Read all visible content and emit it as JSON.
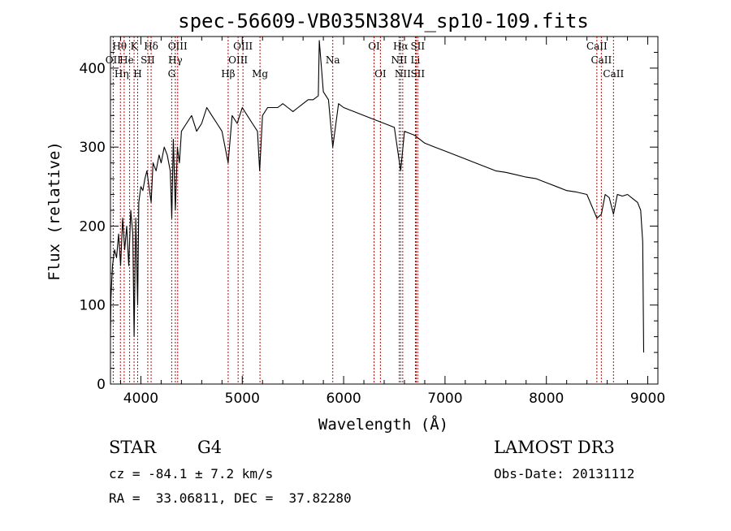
{
  "chart_data": {
    "type": "line",
    "title": "spec-56609-VB035N38V4_sp10-109.fits",
    "xlabel": "Wavelength (Å)",
    "ylabel": "Flux (relative)",
    "xlim": [
      3700,
      9100
    ],
    "ylim": [
      0,
      440
    ],
    "xticks": [
      4000,
      5000,
      6000,
      7000,
      8000,
      9000
    ],
    "yticks": [
      0,
      100,
      200,
      300,
      400
    ],
    "x_tick_labels": [
      "4000",
      "5000",
      "6000",
      "7000",
      "8000",
      "9000"
    ],
    "y_tick_labels": [
      "0",
      "100",
      "200",
      "300",
      "400"
    ],
    "grid": false,
    "series": [
      {
        "name": "flux",
        "x": [
          3700,
          3705,
          3720,
          3740,
          3760,
          3780,
          3800,
          3820,
          3840,
          3860,
          3880,
          3900,
          3920,
          3933,
          3950,
          3968,
          3980,
          4000,
          4020,
          4040,
          4060,
          4080,
          4101,
          4120,
          4150,
          4180,
          4200,
          4230,
          4260,
          4290,
          4305,
          4320,
          4340,
          4360,
          4380,
          4400,
          4450,
          4500,
          4550,
          4600,
          4650,
          4700,
          4750,
          4800,
          4861,
          4900,
          4950,
          5000,
          5050,
          5100,
          5150,
          5172,
          5200,
          5250,
          5300,
          5350,
          5400,
          5450,
          5500,
          5550,
          5600,
          5650,
          5700,
          5750,
          5760,
          5800,
          5850,
          5893,
          5950,
          6000,
          6100,
          6200,
          6300,
          6400,
          6500,
          6563,
          6600,
          6700,
          6800,
          6900,
          7000,
          7100,
          7200,
          7300,
          7400,
          7500,
          7600,
          7700,
          7800,
          7900,
          8000,
          8100,
          8200,
          8300,
          8400,
          8498,
          8542,
          8580,
          8620,
          8662,
          8700,
          8750,
          8800,
          8850,
          8900,
          8930,
          8950,
          8960
        ],
        "values": [
          60,
          110,
          150,
          170,
          160,
          190,
          150,
          210,
          170,
          200,
          150,
          220,
          190,
          60,
          210,
          100,
          230,
          250,
          245,
          260,
          270,
          250,
          230,
          280,
          270,
          290,
          280,
          300,
          290,
          270,
          210,
          310,
          220,
          300,
          280,
          320,
          330,
          340,
          320,
          330,
          350,
          340,
          330,
          320,
          280,
          340,
          330,
          350,
          340,
          330,
          320,
          270,
          340,
          350,
          350,
          350,
          355,
          350,
          345,
          350,
          355,
          360,
          360,
          365,
          435,
          370,
          360,
          300,
          355,
          350,
          345,
          340,
          335,
          330,
          325,
          270,
          320,
          315,
          305,
          300,
          295,
          290,
          285,
          280,
          275,
          270,
          268,
          265,
          262,
          260,
          255,
          250,
          245,
          243,
          240,
          210,
          215,
          240,
          236,
          215,
          240,
          238,
          240,
          235,
          230,
          220,
          180,
          40
        ]
      }
    ],
    "spectral_lines": [
      {
        "label": "Hθ",
        "wavelength": 3798
      },
      {
        "label": "OII",
        "wavelength": 3727
      },
      {
        "label": "Hη",
        "wavelength": 3835
      },
      {
        "label": "He",
        "wavelength": 3889
      },
      {
        "label": "K",
        "wavelength": 3933
      },
      {
        "label": "H",
        "wavelength": 3968
      },
      {
        "label": "SII",
        "wavelength": 4068
      },
      {
        "label": "Hδ",
        "wavelength": 4101
      },
      {
        "label": "G",
        "wavelength": 4304
      },
      {
        "label": "OIII",
        "wavelength": 4363
      },
      {
        "label": "Hγ",
        "wavelength": 4340
      },
      {
        "label": "Hβ",
        "wavelength": 4861
      },
      {
        "label": "OIII",
        "wavelength": 4959
      },
      {
        "label": "OIII",
        "wavelength": 5007
      },
      {
        "label": "Mg",
        "wavelength": 5175
      },
      {
        "label": "Na",
        "wavelength": 5893
      },
      {
        "label": "OI",
        "wavelength": 6300
      },
      {
        "label": "OI",
        "wavelength": 6363
      },
      {
        "label": "NII",
        "wavelength": 6548
      },
      {
        "label": "Hα",
        "wavelength": 6563
      },
      {
        "label": "NII",
        "wavelength": 6583
      },
      {
        "label": "Li",
        "wavelength": 6708
      },
      {
        "label": "SII",
        "wavelength": 6716
      },
      {
        "label": "SII",
        "wavelength": 6731
      },
      {
        "label": "CaII",
        "wavelength": 8498
      },
      {
        "label": "CaII",
        "wavelength": 8542
      },
      {
        "label": "CaII",
        "wavelength": 8662
      }
    ],
    "line_labels": [
      {
        "text": "Hθ",
        "wavelength": 3790,
        "row": 0
      },
      {
        "text": "K",
        "wavelength": 3933,
        "row": 0
      },
      {
        "text": "Hδ",
        "wavelength": 4101,
        "row": 0
      },
      {
        "text": "OIII",
        "wavelength": 4363,
        "row": 0
      },
      {
        "text": "OIII",
        "wavelength": 5007,
        "row": 0
      },
      {
        "text": "OI",
        "wavelength": 6300,
        "row": 0
      },
      {
        "text": "Hα",
        "wavelength": 6563,
        "row": 0
      },
      {
        "text": "SII",
        "wavelength": 6731,
        "row": 0
      },
      {
        "text": "CaII",
        "wavelength": 8498,
        "row": 0
      },
      {
        "text": "OII",
        "wavelength": 3727,
        "row": 1
      },
      {
        "text": "He",
        "wavelength": 3860,
        "row": 1
      },
      {
        "text": "SII",
        "wavelength": 4068,
        "row": 1
      },
      {
        "text": "Hγ",
        "wavelength": 4340,
        "row": 1
      },
      {
        "text": "OIII",
        "wavelength": 4959,
        "row": 1
      },
      {
        "text": "Na",
        "wavelength": 5893,
        "row": 1
      },
      {
        "text": "NII",
        "wavelength": 6548,
        "row": 1
      },
      {
        "text": "Li",
        "wavelength": 6708,
        "row": 1
      },
      {
        "text": "CaII",
        "wavelength": 8542,
        "row": 1
      },
      {
        "text": "Hη",
        "wavelength": 3810,
        "row": 2
      },
      {
        "text": "H",
        "wavelength": 3968,
        "row": 2
      },
      {
        "text": "G",
        "wavelength": 4304,
        "row": 2
      },
      {
        "text": "Hβ",
        "wavelength": 4861,
        "row": 2
      },
      {
        "text": "Mg",
        "wavelength": 5175,
        "row": 2
      },
      {
        "text": "OI",
        "wavelength": 6363,
        "row": 2
      },
      {
        "text": "NII",
        "wavelength": 6583,
        "row": 2
      },
      {
        "text": "SII",
        "wavelength": 6731,
        "row": 2
      },
      {
        "text": "CaII",
        "wavelength": 8662,
        "row": 2
      }
    ]
  },
  "info": {
    "object_type": "STAR",
    "subclass": "G4",
    "survey": "LAMOST DR3",
    "velocity": "cz = -84.1 ± 7.2 km/s",
    "obs_date": "Obs-Date: 20131112",
    "coords": "RA =  33.06811, DEC =  37.82280"
  },
  "colors": {
    "spectrum": "#000000",
    "line_marker": "#cc0000",
    "axis": "#000000"
  }
}
